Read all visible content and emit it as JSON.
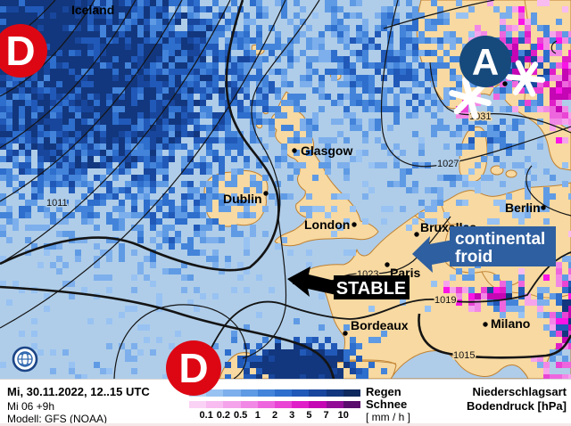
{
  "map": {
    "region_label": "Iceland",
    "cities": [
      {
        "name": "Glasgow"
      },
      {
        "name": "Dublin"
      },
      {
        "name": "London"
      },
      {
        "name": "Bruxelles"
      },
      {
        "name": "Berlin"
      },
      {
        "name": "Paris"
      },
      {
        "name": "Bordeaux"
      },
      {
        "name": "Milano"
      }
    ],
    "isobar_labels": [
      "1011",
      "1027",
      "1031",
      "1023",
      "1019",
      "1015"
    ],
    "pressure_centers": [
      {
        "symbol": "D",
        "type": "low",
        "color": "#dd0713"
      },
      {
        "symbol": "A",
        "type": "high",
        "color": "#164a7c"
      },
      {
        "symbol": "D",
        "type": "low",
        "color": "#dd0713"
      }
    ],
    "annotations": {
      "cold_air": {
        "line1": "continental",
        "line2": "froid",
        "bg_color": "#2e5fa0"
      },
      "stable": {
        "label": "STABLE",
        "bg_color": "#000000"
      }
    },
    "colors": {
      "sea": "#afcde9",
      "land": "#f7d9a1",
      "coast": "#c08030",
      "isobar": "#141414"
    }
  },
  "footer": {
    "datetime_line": "Mi, 30.11.2022, 12..15 UTC",
    "run_line": "Mi 06 +9h",
    "model_line": "Modell: GFS (NOAA)",
    "legend": {
      "rain_label": "Regen",
      "snow_label": "Schnee",
      "unit_label": "[ mm / h ]",
      "ticks": [
        "0.1",
        "0.2",
        "0.5",
        "1",
        "2",
        "3",
        "5",
        "7",
        "10"
      ],
      "rain_colors": [
        "#b2d2f6",
        "#98c2f2",
        "#7dafec",
        "#5f9ae4",
        "#4384da",
        "#2e6ecc",
        "#2159b8",
        "#18469c",
        "#12377e",
        "#0e2a5e"
      ],
      "snow_colors": [
        "#fad2f5",
        "#f8bcf1",
        "#f5a4ec",
        "#f288e6",
        "#ee66de",
        "#e944d4",
        "#e01ec8",
        "#c406b4",
        "#920c96",
        "#5a0d6c"
      ]
    },
    "right_line1": "Niederschlagsart",
    "right_line2": "Bodendruck [hPa]"
  }
}
